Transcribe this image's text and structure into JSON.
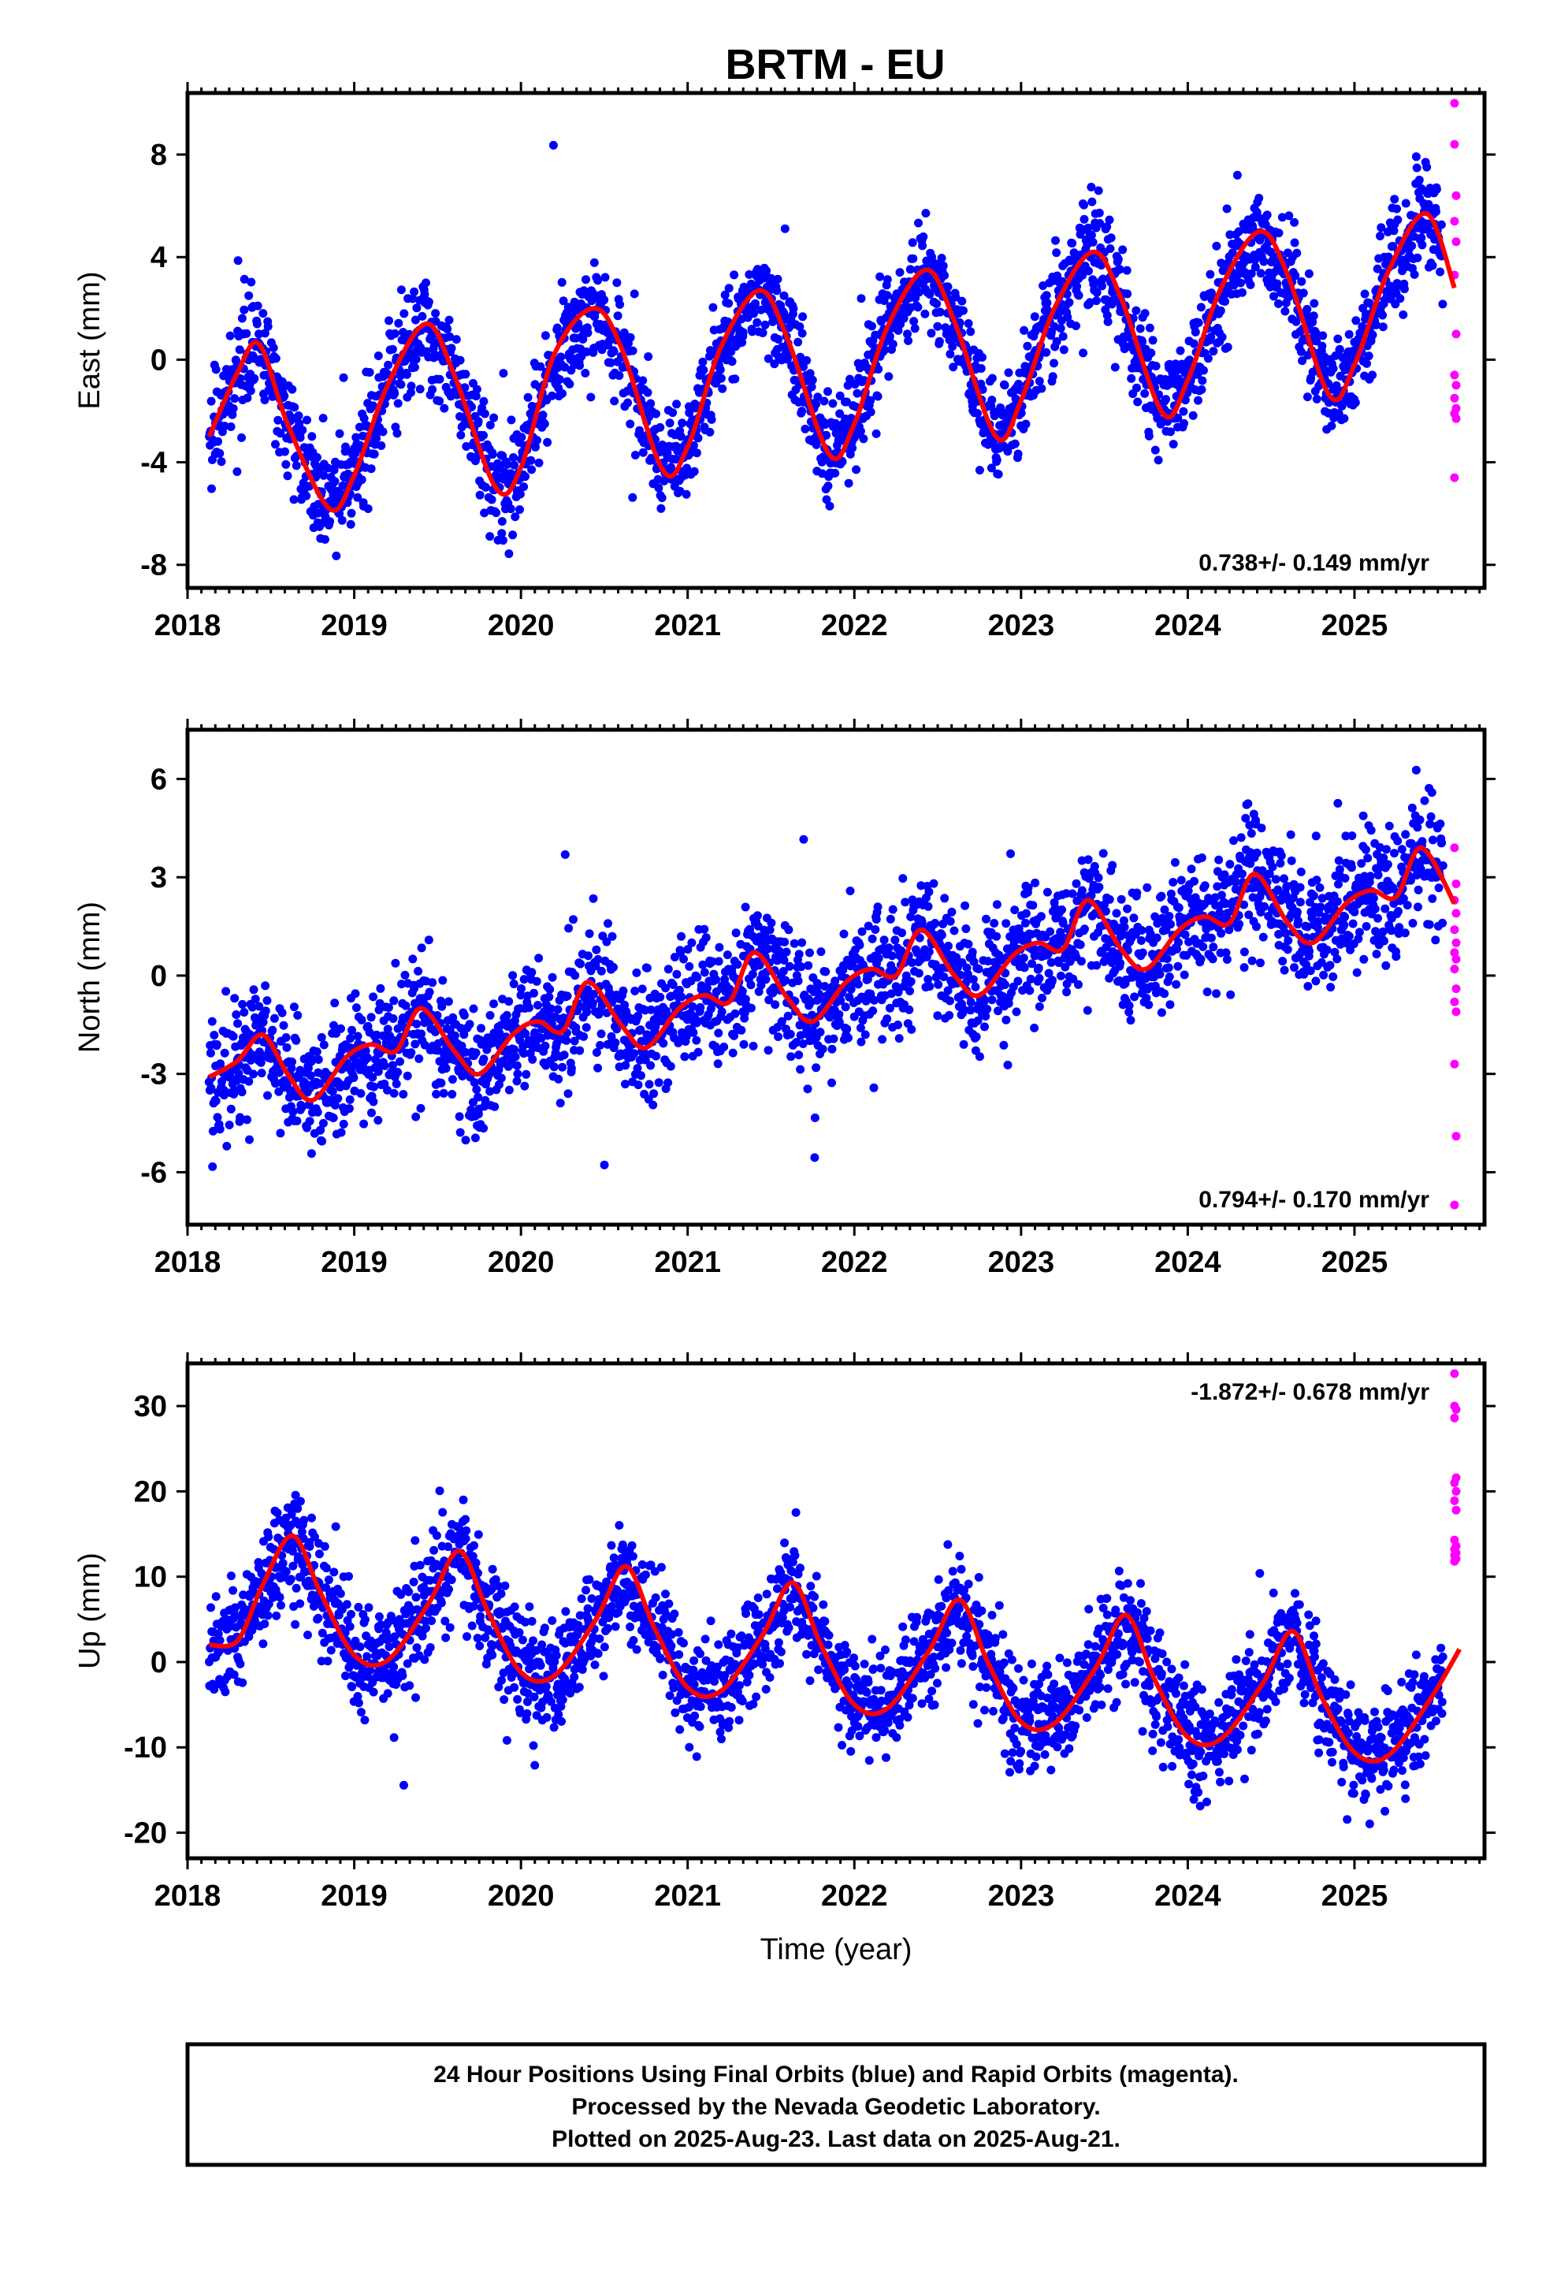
{
  "title": "BRTM - EU",
  "x_title": "Time (year)",
  "footer": {
    "line1": "24 Hour Positions Using Final Orbits (blue) and Rapid Orbits (magenta).",
    "line2": "Processed by the Nevada Geodetic Laboratory.",
    "line3": "Plotted on 2025-Aug-23. Last data on 2025-Aug-21."
  },
  "colors": {
    "final": "#0000ff",
    "rapid": "#ff00ff",
    "model": "#ff0000",
    "frame": "#000000"
  },
  "chart_data": [
    {
      "type": "scatter",
      "ylabel": "East (mm)",
      "xlim": [
        2018.0,
        2025.78
      ],
      "ylim": [
        -8.9,
        10.4
      ],
      "xticks": [
        2018,
        2019,
        2020,
        2021,
        2022,
        2023,
        2024,
        2025
      ],
      "yticks": [
        -8,
        -4,
        0,
        4,
        8
      ],
      "rate_label": "0.738+/- 0.149 mm/yr",
      "rate_position": "bottom-right",
      "series": [
        {
          "role": "final",
          "x_start": 2018.13,
          "x_end": 2025.53,
          "trend_at_start": -2.85,
          "rate": 0.738,
          "annual_sin": 0.15,
          "annual_cos": -3.0,
          "semiannual_sin": 0.3,
          "semiannual_cos": -0.35,
          "scatter_sd": 1.0,
          "points_per_year": 340
        },
        {
          "role": "rapid",
          "x": [
            2025.6,
            2025.6,
            2025.61,
            2025.6,
            2025.61,
            2025.6,
            2025.61,
            2025.6,
            2025.61,
            2025.6,
            2025.61,
            2025.6,
            2025.61,
            2025.6
          ],
          "y": [
            10.0,
            8.4,
            6.4,
            5.4,
            4.6,
            3.3,
            1.0,
            -0.6,
            -1.0,
            -1.5,
            -1.9,
            -2.1,
            -2.3,
            -4.6
          ]
        },
        {
          "role": "model",
          "x": [
            2018.13,
            2018.3,
            2018.43,
            2018.6,
            2018.85,
            2019.0,
            2019.2,
            2019.43,
            2019.6,
            2019.85,
            2020.0,
            2020.2,
            2020.43,
            2020.6,
            2020.85,
            2021.0,
            2021.2,
            2021.43,
            2021.6,
            2021.85,
            2022.0,
            2022.2,
            2022.43,
            2022.6,
            2022.85,
            2023.0,
            2023.2,
            2023.43,
            2023.6,
            2023.85,
            2024.0,
            2024.2,
            2024.43,
            2024.6,
            2024.85,
            2025.0,
            2025.2,
            2025.43,
            2025.6
          ],
          "y": [
            -3.0,
            -0.5,
            0.6,
            -2.5,
            -5.8,
            -4.5,
            -1.0,
            1.4,
            -0.6,
            -5.0,
            -4.2,
            0.2,
            2.0,
            0.5,
            -4.3,
            -3.4,
            0.5,
            2.7,
            0.8,
            -3.7,
            -2.5,
            1.3,
            3.5,
            1.5,
            -3.0,
            -1.6,
            2.0,
            4.2,
            2.4,
            -2.1,
            -0.8,
            2.8,
            5.0,
            3.3,
            -1.4,
            -0.2,
            3.4,
            5.7,
            2.8
          ]
        }
      ]
    },
    {
      "type": "scatter",
      "ylabel": "North (mm)",
      "xlim": [
        2018.0,
        2025.78
      ],
      "ylim": [
        -7.6,
        7.5
      ],
      "xticks": [
        2018,
        2019,
        2020,
        2021,
        2022,
        2023,
        2024,
        2025
      ],
      "yticks": [
        -6,
        -3,
        0,
        3,
        6
      ],
      "rate_label": "0.794+/- 0.170 mm/yr",
      "rate_position": "bottom-right",
      "series": [
        {
          "role": "final",
          "x_start": 2018.13,
          "x_end": 2025.53,
          "trend_at_start": -2.9,
          "rate": 0.794,
          "annual_sin": -0.35,
          "annual_cos": 0.75,
          "semiannual_sin": -0.2,
          "semiannual_cos": 0.25,
          "scatter_sd": 0.95,
          "points_per_year": 340
        },
        {
          "role": "rapid",
          "x": [
            2025.6,
            2025.61,
            2025.6,
            2025.61,
            2025.6,
            2025.61,
            2025.6,
            2025.61,
            2025.6,
            2025.61,
            2025.6,
            2025.61,
            2025.6,
            2025.61,
            2025.6
          ],
          "y": [
            3.9,
            2.8,
            2.3,
            1.9,
            1.4,
            1.0,
            0.7,
            0.5,
            0.2,
            -0.4,
            -0.8,
            -1.1,
            -2.7,
            -4.9,
            -7.0
          ]
        },
        {
          "role": "model",
          "x": [
            2018.13,
            2018.3,
            2018.45,
            2018.6,
            2018.75,
            2018.95,
            2019.1,
            2019.25,
            2019.4,
            2019.6,
            2019.75,
            2019.95,
            2020.1,
            2020.25,
            2020.4,
            2020.6,
            2020.75,
            2020.95,
            2021.1,
            2021.25,
            2021.4,
            2021.6,
            2021.75,
            2021.95,
            2022.1,
            2022.25,
            2022.4,
            2022.6,
            2022.75,
            2022.95,
            2023.1,
            2023.25,
            2023.4,
            2023.6,
            2023.75,
            2023.95,
            2024.1,
            2024.25,
            2024.4,
            2024.6,
            2024.75,
            2024.95,
            2025.1,
            2025.25,
            2025.4,
            2025.6
          ],
          "y": [
            -3.1,
            -2.6,
            -1.8,
            -3.0,
            -3.8,
            -2.5,
            -2.1,
            -2.3,
            -1.0,
            -2.3,
            -3.0,
            -1.8,
            -1.4,
            -1.7,
            -0.2,
            -1.5,
            -2.2,
            -1.0,
            -0.6,
            -0.8,
            0.7,
            -0.7,
            -1.4,
            -0.2,
            0.2,
            0.0,
            1.4,
            0.0,
            -0.6,
            0.6,
            1.0,
            0.8,
            2.3,
            0.8,
            0.2,
            1.4,
            1.8,
            1.6,
            3.1,
            1.6,
            1.0,
            2.2,
            2.6,
            2.4,
            3.9,
            2.2
          ]
        }
      ]
    },
    {
      "type": "scatter",
      "ylabel": "Up (mm)",
      "xlabel": "Time (year)",
      "xlim": [
        2018.0,
        2025.78
      ],
      "ylim": [
        -23,
        35
      ],
      "xticks": [
        2018,
        2019,
        2020,
        2021,
        2022,
        2023,
        2024,
        2025
      ],
      "yticks": [
        -20,
        -10,
        0,
        10,
        20,
        30
      ],
      "rate_label": "-1.872+/- 0.678 mm/yr",
      "rate_position": "top-right",
      "series": [
        {
          "role": "final",
          "x_start": 2018.13,
          "x_end": 2025.53,
          "trend_at_start": 5.2,
          "rate": -1.872,
          "annual_sin": -7.5,
          "annual_cos": -5.8,
          "semiannual_sin": 0.4,
          "semiannual_cos": 0.8,
          "scatter_sd": 3.2,
          "points_per_year": 340
        },
        {
          "role": "rapid",
          "x": [
            2025.6,
            2025.6,
            2025.61,
            2025.6,
            2025.61,
            2025.6,
            2025.61,
            2025.6,
            2025.61,
            2025.6,
            2025.61,
            2025.6,
            2025.61,
            2025.6,
            2025.61,
            2025.6
          ],
          "y": [
            33.8,
            30.0,
            29.6,
            28.6,
            21.6,
            21.0,
            20.0,
            18.9,
            17.8,
            14.3,
            13.6,
            13.2,
            12.8,
            12.5,
            12.1,
            11.8
          ]
        },
        {
          "role": "model",
          "x": [
            2018.13,
            2018.3,
            2018.45,
            2018.63,
            2018.8,
            2019.0,
            2019.2,
            2019.45,
            2019.63,
            2019.8,
            2020.0,
            2020.2,
            2020.45,
            2020.63,
            2020.8,
            2021.0,
            2021.2,
            2021.45,
            2021.63,
            2021.8,
            2022.0,
            2022.2,
            2022.45,
            2022.63,
            2022.8,
            2023.0,
            2023.2,
            2023.45,
            2023.63,
            2023.8,
            2024.0,
            2024.2,
            2024.45,
            2024.63,
            2024.8,
            2025.0,
            2025.2,
            2025.45,
            2025.63
          ],
          "y": [
            2.0,
            2.5,
            9.0,
            14.8,
            8.0,
            0.8,
            0.2,
            7.0,
            13.0,
            6.0,
            -1.2,
            -1.6,
            5.0,
            11.2,
            4.0,
            -3.0,
            -3.4,
            3.2,
            9.3,
            2.0,
            -5.0,
            -5.4,
            1.4,
            7.3,
            0.0,
            -7.0,
            -7.2,
            -0.6,
            5.5,
            -2.0,
            -8.8,
            -9.0,
            -2.5,
            3.6,
            -4.0,
            -10.6,
            -11.0,
            -4.5,
            1.5
          ]
        }
      ]
    }
  ]
}
